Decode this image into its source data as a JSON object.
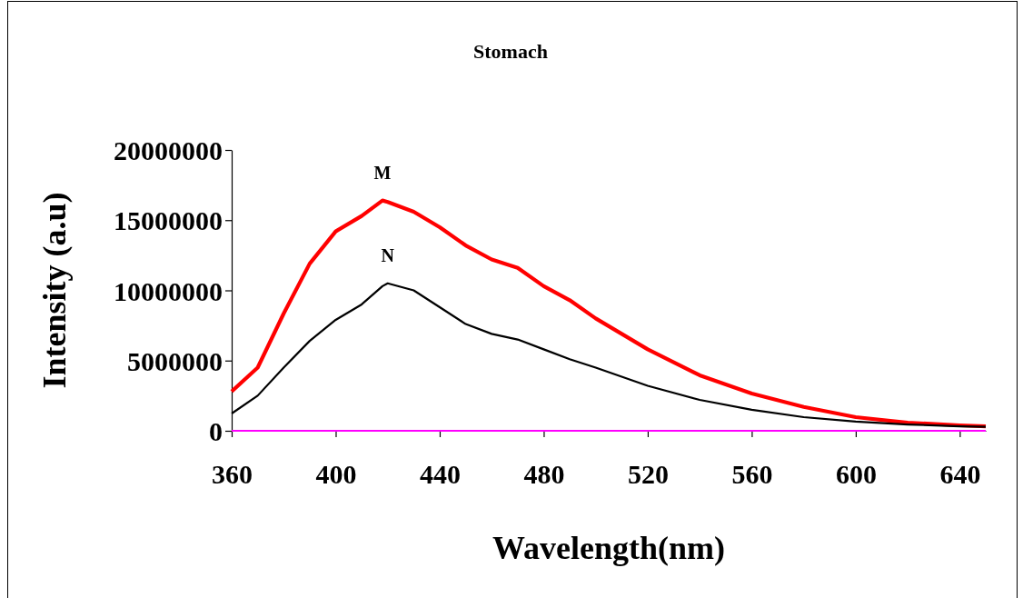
{
  "chart_data": {
    "type": "line",
    "title": "Stomach",
    "xlabel": "Wavelength(nm)",
    "ylabel": "Intensity (a.u)",
    "x": [
      360,
      370,
      380,
      390,
      400,
      410,
      418,
      420,
      430,
      440,
      450,
      460,
      470,
      480,
      490,
      500,
      520,
      540,
      560,
      580,
      600,
      620,
      640,
      650
    ],
    "series": [
      {
        "name": "M",
        "color": "#ff0000",
        "values": [
          2800000,
          4500000,
          8350000,
          11900000,
          14200000,
          15300000,
          16400000,
          16300000,
          15600000,
          14500000,
          13200000,
          12200000,
          11600000,
          10300000,
          9300000,
          8000000,
          5800000,
          3950000,
          2650000,
          1700000,
          970000,
          580000,
          390000,
          320000
        ]
      },
      {
        "name": "N",
        "color": "#000000",
        "values": [
          1230000,
          2500000,
          4500000,
          6400000,
          7900000,
          9000000,
          10300000,
          10500000,
          10000000,
          8800000,
          7600000,
          6900000,
          6500000,
          5800000,
          5100000,
          4500000,
          3200000,
          2200000,
          1500000,
          970000,
          650000,
          450000,
          320000,
          280000
        ]
      }
    ],
    "xlim": [
      360,
      650
    ],
    "xticks": [
      360,
      400,
      440,
      480,
      520,
      560,
      600,
      640
    ],
    "ylim": [
      0,
      20000000
    ],
    "yticks": [
      0,
      5000000,
      10000000,
      15000000,
      20000000
    ],
    "ref_lines": [
      {
        "axis": "y",
        "value": 0,
        "color": "#ff00ff"
      }
    ],
    "grid": false,
    "legend": false,
    "marker": "none",
    "line_style": "solid"
  }
}
